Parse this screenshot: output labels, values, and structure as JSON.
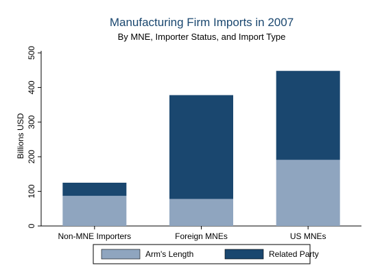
{
  "chart_data": {
    "type": "bar",
    "stacked": true,
    "title": "Manufacturing Firm Imports in 2007",
    "subtitle": "By MNE, Importer Status, and Import Type",
    "xlabel": "",
    "ylabel": "Billions USD",
    "ylim": [
      0,
      500
    ],
    "yticks": [
      0,
      100,
      200,
      300,
      400,
      500
    ],
    "categories": [
      "Non-MNE Importers",
      "Foreign MNEs",
      "US MNEs"
    ],
    "series": [
      {
        "name": "Arm's Length",
        "color": "#8fa5bf",
        "values": [
          87,
          78,
          191
        ]
      },
      {
        "name": "Related Party",
        "color": "#1a476f",
        "values": [
          38,
          300,
          257
        ]
      }
    ],
    "legend": {
      "position": "bottom"
    },
    "grid": false
  }
}
